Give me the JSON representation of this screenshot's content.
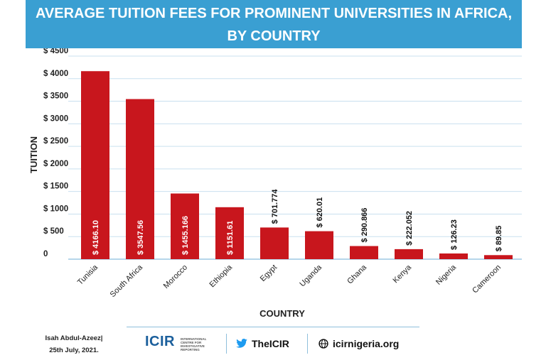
{
  "chart_data": {
    "type": "bar",
    "title_line1": "AVERAGE TUITION FEES FOR PROMINENT UNIVERSITIES IN AFRICA,",
    "title_line2": "BY COUNTRY",
    "xlabel": "COUNTRY",
    "ylabel": "TUITION",
    "ylim": [
      0,
      4500
    ],
    "yticks": [
      {
        "value": 0,
        "label": "0"
      },
      {
        "value": 500,
        "label": "$ 500"
      },
      {
        "value": 1000,
        "label": "$ 1000"
      },
      {
        "value": 1500,
        "label": "$ 1500"
      },
      {
        "value": 2000,
        "label": "$ 2000"
      },
      {
        "value": 2500,
        "label": "$ 2500"
      },
      {
        "value": 3000,
        "label": "$ 3000"
      },
      {
        "value": 3500,
        "label": "$ 3500"
      },
      {
        "value": 4000,
        "label": "$ 4000"
      },
      {
        "value": 4500,
        "label": "$ 4500"
      }
    ],
    "grid": true,
    "bar_color": "#c8161d",
    "categories": [
      "Tunisia",
      "South Africa",
      "Morocco",
      "Ethiopia",
      "Egypt",
      "Uganda",
      "Ghana",
      "Kenya",
      "Nigeria",
      "Cameroon"
    ],
    "values": [
      4166.1,
      3547.56,
      1455.166,
      1151.61,
      701.774,
      620.01,
      290.866,
      222.052,
      126.23,
      89.85
    ],
    "value_labels": [
      "$ 4166.10",
      "$ 3547.56",
      "$ 1455.166",
      "$ 1151.61",
      "$ 701.774",
      "$ 620.01",
      "$ 290.866",
      "$ 222.052",
      "$ 126.23",
      "$ 89.85"
    ],
    "label_inside": [
      true,
      true,
      true,
      true,
      false,
      false,
      false,
      false,
      false,
      false
    ]
  },
  "footer": {
    "credit_line1": "Isah Abdul-Azeez|",
    "credit_line2": "25th July, 2021.",
    "logo_text": "ICIR",
    "logo_subtext": "INTERNATIONAL CENTRE FOR INVESTIGATIVE REPORTING",
    "twitter": "TheICIR",
    "website": "icirnigeria.org"
  }
}
